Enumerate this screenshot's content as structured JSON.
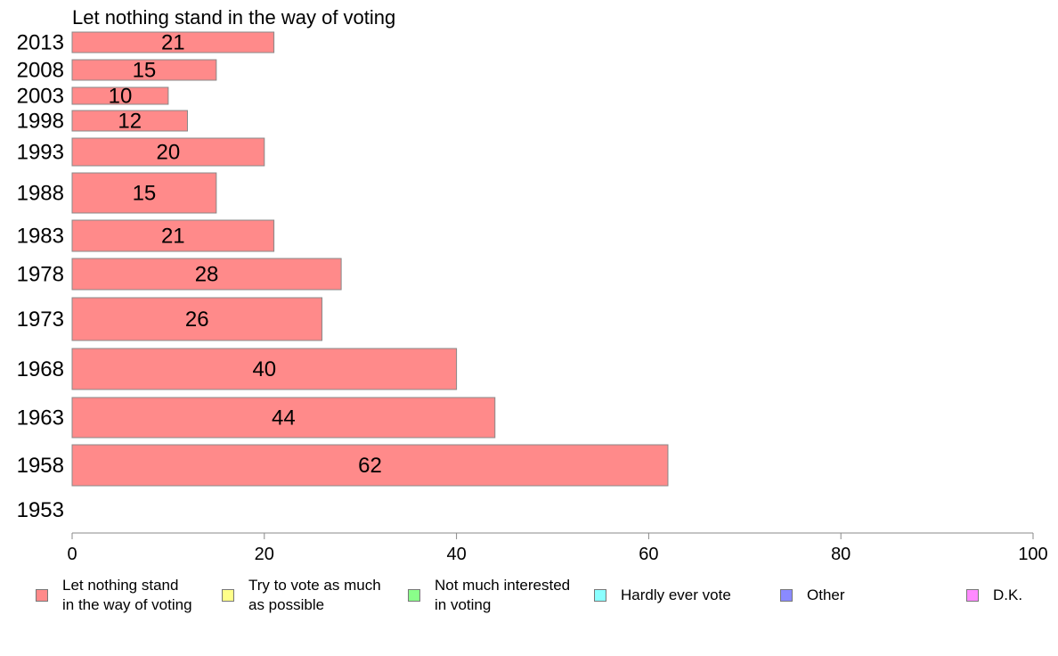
{
  "chart_data": {
    "type": "bar",
    "orientation": "horizontal",
    "title": "Let nothing stand in the way of voting",
    "categories": [
      "2013",
      "2008",
      "2003",
      "1998",
      "1993",
      "1988",
      "1983",
      "1978",
      "1973",
      "1968",
      "1963",
      "1958",
      "1953"
    ],
    "series": [
      {
        "name": "Let nothing stand in the way of voting",
        "color": "#ff8a8a",
        "values": [
          21,
          15,
          10,
          12,
          20,
          15,
          21,
          28,
          26,
          40,
          44,
          62,
          null
        ],
        "labels": [
          "21",
          "15",
          "10",
          "12",
          "20",
          "15",
          "21",
          "28",
          "26",
          "40",
          "44",
          "62",
          ""
        ]
      }
    ],
    "xlim": [
      0,
      100
    ],
    "xticks": [
      "0",
      "20",
      "40",
      "60",
      "80",
      "100"
    ],
    "grid": false,
    "legend_placement": "bottom"
  },
  "legend": [
    {
      "label": "Let nothing stand\nin the way of voting",
      "color": "#ff8a8a"
    },
    {
      "label": "Try to vote as much\nas possible",
      "color": "#ffff8a"
    },
    {
      "label": "Not much interested\nin voting",
      "color": "#8aff8a"
    },
    {
      "label": "Hardly ever vote",
      "color": "#8affff"
    },
    {
      "label": "Other",
      "color": "#8a8aff"
    },
    {
      "label": "D.K.",
      "color": "#ff8aff"
    }
  ]
}
